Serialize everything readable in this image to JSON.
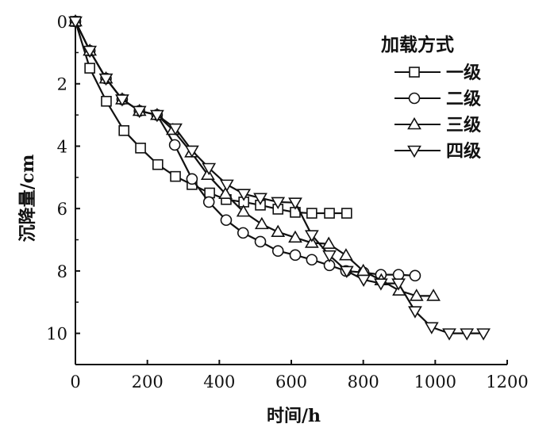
{
  "chart_data": {
    "type": "line",
    "title": "",
    "xlabel": "时间/h",
    "ylabel": "沉降量/cm",
    "xlim": [
      0,
      1200
    ],
    "ylim": [
      0,
      11
    ],
    "y_inverted": true,
    "xticks": [
      "0",
      "200",
      "400",
      "600",
      "800",
      "1000",
      "1200"
    ],
    "yticks": [
      "0",
      "2",
      "4",
      "6",
      "8",
      "10"
    ],
    "legend_title": "加载方式",
    "legend_placement": "top-right",
    "grid": false,
    "series": [
      {
        "name": "一级",
        "marker": "square",
        "x": [
          0,
          40,
          86,
          135,
          181,
          229,
          278,
          324,
          373,
          419,
          468,
          514,
          563,
          611,
          657,
          706,
          754
        ],
        "y": [
          0,
          1.5,
          2.56,
          3.5,
          4.06,
          4.59,
          4.97,
          5.23,
          5.5,
          5.71,
          5.79,
          5.89,
          6.02,
          6.12,
          6.15,
          6.15,
          6.15
        ]
      },
      {
        "name": "二级",
        "marker": "circle",
        "x": [
          0,
          40,
          85,
          130,
          178,
          227,
          276,
          324,
          371,
          419,
          466,
          514,
          563,
          611,
          657,
          706,
          752,
          801,
          849,
          898,
          944
        ],
        "y": [
          0,
          0.94,
          1.83,
          2.5,
          2.87,
          3.0,
          3.96,
          5.05,
          5.79,
          6.37,
          6.78,
          7.06,
          7.36,
          7.49,
          7.64,
          7.82,
          8.0,
          8.05,
          8.12,
          8.12,
          8.15
        ]
      },
      {
        "name": "三级",
        "marker": "triangle-up",
        "x": [
          0,
          40,
          85,
          130,
          178,
          227,
          271,
          322,
          368,
          417,
          467,
          518,
          563,
          611,
          657,
          704,
          752,
          800,
          850,
          900,
          948,
          995
        ],
        "y": [
          0,
          0.94,
          1.83,
          2.5,
          2.87,
          3.0,
          3.48,
          4.2,
          4.92,
          5.53,
          6.1,
          6.5,
          6.75,
          6.93,
          7.1,
          7.13,
          7.5,
          8.0,
          8.3,
          8.63,
          8.8,
          8.8
        ]
      },
      {
        "name": "四级",
        "marker": "triangle-down",
        "x": [
          0,
          40,
          85,
          130,
          178,
          227,
          278,
          324,
          371,
          421,
          468,
          514,
          563,
          611,
          657,
          706,
          754,
          801,
          849,
          898,
          944,
          990,
          1039,
          1088,
          1134
        ],
        "y": [
          0,
          0.94,
          1.83,
          2.5,
          2.87,
          3.0,
          3.43,
          4.14,
          4.7,
          5.23,
          5.53,
          5.66,
          5.79,
          5.81,
          6.85,
          7.5,
          8.0,
          8.28,
          8.4,
          8.4,
          9.29,
          9.8,
          10.0,
          10.0,
          10.0
        ]
      }
    ]
  }
}
